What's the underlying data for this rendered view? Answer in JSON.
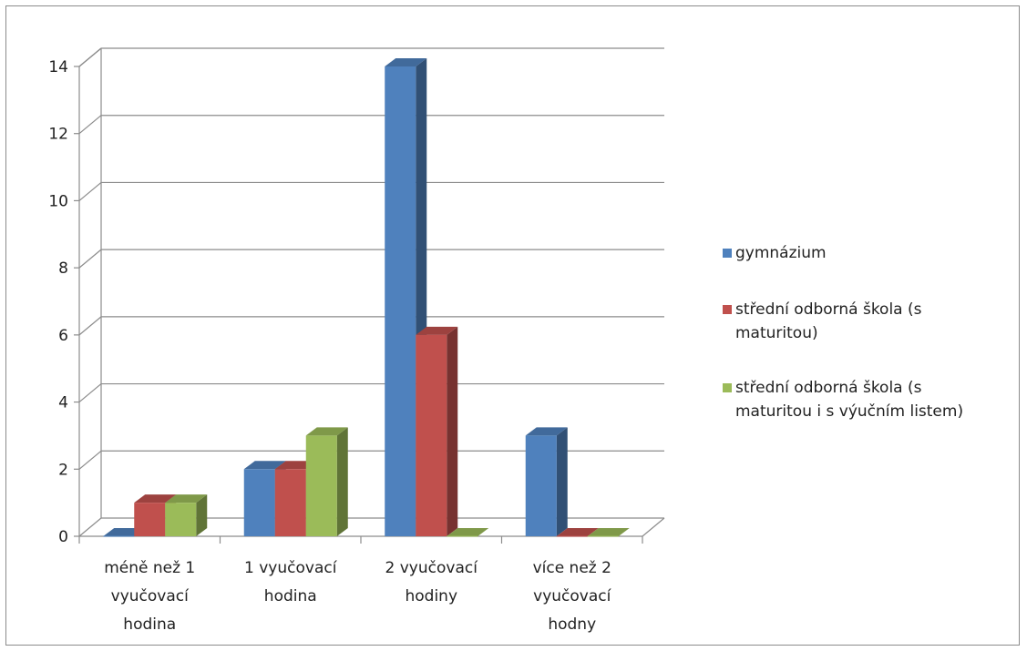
{
  "chart_data": {
    "type": "bar",
    "categories": [
      "méně než 1 vyučovací hodina",
      "1 vyučovací hodina",
      "2 vyučovací hodiny",
      "více než 2 vyučovací hodny"
    ],
    "category_lines": [
      [
        "méně než 1",
        "vyučovací",
        "hodina"
      ],
      [
        "1 vyučovací",
        "hodina"
      ],
      [
        "2 vyučovací",
        "hodiny"
      ],
      [
        "více než 2",
        "vyučovací",
        "hodny"
      ]
    ],
    "series": [
      {
        "name": "gymnázium",
        "color": "#4F81BD",
        "values": [
          0,
          2,
          14,
          3
        ]
      },
      {
        "name": "střední odborná škola (s maturitou)",
        "color": "#C0504D",
        "values": [
          1,
          2,
          6,
          0
        ]
      },
      {
        "name": "střední odborná škola (s maturitou i s výučním listem)",
        "color": "#9BBB59",
        "values": [
          1,
          3,
          0,
          0
        ]
      }
    ],
    "legend_lines": [
      [
        "gymnázium"
      ],
      [
        "střední odborná škola (s",
        "maturitou)"
      ],
      [
        "střední odborná škola (s",
        "maturitou i s výučním listem)"
      ]
    ],
    "yticks": [
      0,
      2,
      4,
      6,
      8,
      10,
      12,
      14
    ],
    "ylim": [
      0,
      14
    ],
    "title": "",
    "xlabel": "",
    "ylabel": "",
    "grid": true,
    "legend_position": "right",
    "style": "3d-clustered-column"
  }
}
